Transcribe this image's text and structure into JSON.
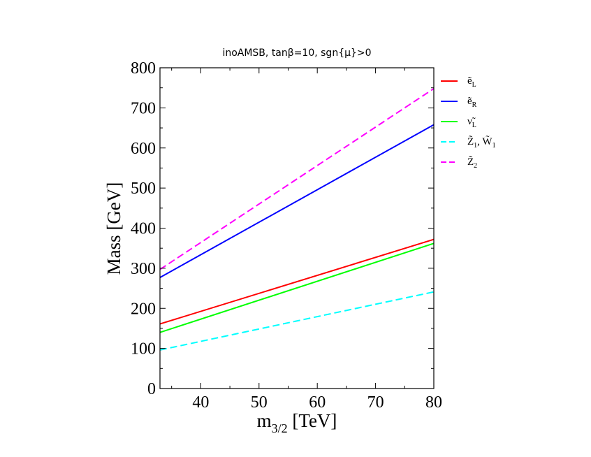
{
  "chart_data": {
    "type": "line",
    "title": "inoAMSB,   tanβ=10,  sgn{μ}>0",
    "xlabel": "m",
    "xlabel_sub": "3/2",
    "xlabel_unit": " [TeV]",
    "ylabel": "Mass [GeV]",
    "xlim": [
      33,
      80
    ],
    "ylim": [
      0,
      800
    ],
    "xticks": [
      40,
      50,
      60,
      70,
      80
    ],
    "yticks": [
      0,
      100,
      200,
      300,
      400,
      500,
      600,
      700,
      800
    ],
    "legend_position": "right, outside plot",
    "series": [
      {
        "name": "ẽ_L",
        "base": "ẽ",
        "sub": "L",
        "color": "#ff0000",
        "dash": false,
        "x": [
          33,
          80
        ],
        "y": [
          161,
          372
        ]
      },
      {
        "name": "ẽ_R",
        "base": "ẽ",
        "sub": "R",
        "color": "#0000ff",
        "dash": false,
        "x": [
          33,
          80
        ],
        "y": [
          277,
          658
        ]
      },
      {
        "name": "ν̃_L",
        "base": "ν̃",
        "sub": "L",
        "color": "#00ff00",
        "dash": false,
        "x": [
          33,
          80
        ],
        "y": [
          140,
          362
        ]
      },
      {
        "name": "Z̃_1, W̃_1",
        "base": "Z̃",
        "sub": "1",
        "base2": "W̃",
        "sub2": "1",
        "color": "#00ffff",
        "dash": true,
        "x": [
          33,
          80
        ],
        "y": [
          96,
          241
        ]
      },
      {
        "name": "Z̃_2",
        "base": "Z̃",
        "sub": "2",
        "color": "#ff00ff",
        "dash": true,
        "x": [
          33,
          80
        ],
        "y": [
          297,
          748
        ]
      }
    ]
  }
}
